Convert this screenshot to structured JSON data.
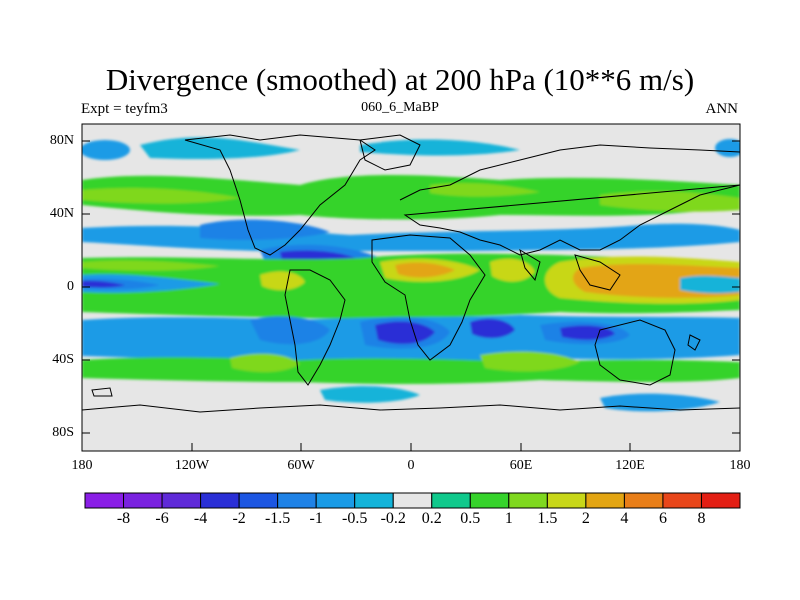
{
  "title": "Divergence (smoothed) at 200 hPa (10**6 m/s)",
  "subtitle_left": "Expt = teyfm3",
  "subtitle_center": "060_6_MaBP",
  "subtitle_right": "ANN",
  "y_ticks": [
    "80N",
    "40N",
    "0",
    "40S",
    "80S"
  ],
  "x_ticks": [
    "180",
    "120W",
    "60W",
    "0",
    "60E",
    "120E",
    "180"
  ],
  "colorbar": {
    "labels": [
      "-8",
      "-6",
      "-4",
      "-2",
      "-1.5",
      "-1",
      "-0.5",
      "-0.2",
      "0.2",
      "0.5",
      "1",
      "1.5",
      "2",
      "4",
      "6",
      "8"
    ],
    "colors": [
      "#8a1ee6",
      "#7a22e0",
      "#5f2ad8",
      "#2a2fd6",
      "#1c56e2",
      "#1f82e6",
      "#1a9be6",
      "#13b3d9",
      "#e6e6e6",
      "#10c98c",
      "#36d32b",
      "#7fd81f",
      "#c8d719",
      "#e3a512",
      "#e87e18",
      "#e8461a",
      "#e31f14"
    ]
  },
  "colors": {
    "ocean_background": "#e6e6e6",
    "coastline": "#000000"
  }
}
